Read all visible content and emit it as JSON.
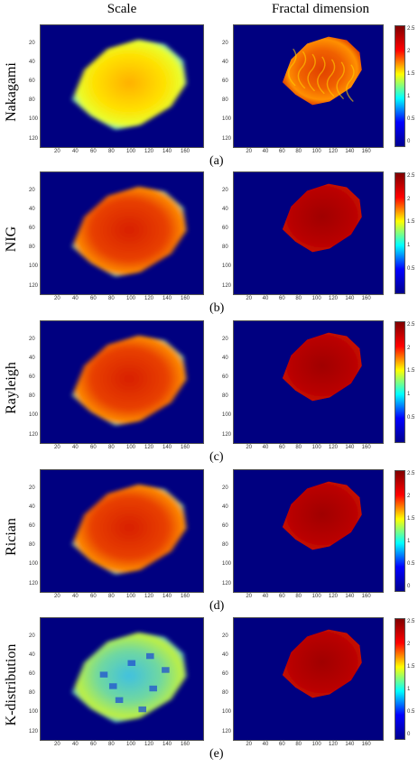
{
  "column_titles": {
    "scale": "Scale",
    "fractal": "Fractal dimension"
  },
  "axes": {
    "x_ticks": [
      "20",
      "40",
      "60",
      "80",
      "100",
      "120",
      "140",
      "160"
    ],
    "y_ticks": [
      "20",
      "40",
      "60",
      "80",
      "100",
      "120"
    ]
  },
  "rows": [
    {
      "label": "Nakagami",
      "sublabel": "(a)",
      "colorbar_ticks": [
        "2.5",
        "2",
        "1.5",
        "1",
        "0.5",
        "0"
      ],
      "scale_style": "yellow",
      "fractal_style": "orange"
    },
    {
      "label": "NIG",
      "sublabel": "(b)",
      "colorbar_ticks": [
        "2.5",
        "2",
        "1.5",
        "1",
        "0.5"
      ],
      "scale_style": "red",
      "fractal_style": "darkred"
    },
    {
      "label": "Rayleigh",
      "sublabel": "(c)",
      "colorbar_ticks": [
        "2.5",
        "2",
        "1.5",
        "1",
        "0.5"
      ],
      "scale_style": "red",
      "fractal_style": "darkred"
    },
    {
      "label": "Rician",
      "sublabel": "(d)",
      "colorbar_ticks": [
        "2.5",
        "2",
        "1.5",
        "1",
        "0.5",
        "0"
      ],
      "scale_style": "red",
      "fractal_style": "darkred"
    },
    {
      "label": "K-distribution",
      "sublabel": "(e)",
      "colorbar_ticks": [
        "2.5",
        "2",
        "1.5",
        "1",
        "0.5",
        "0"
      ],
      "scale_style": "cyan",
      "fractal_style": "darkred"
    }
  ],
  "colors": {
    "background": "#000080",
    "jet": [
      "#00008f",
      "#0000ff",
      "#00ffff",
      "#ffff00",
      "#ff0000",
      "#800000"
    ]
  }
}
